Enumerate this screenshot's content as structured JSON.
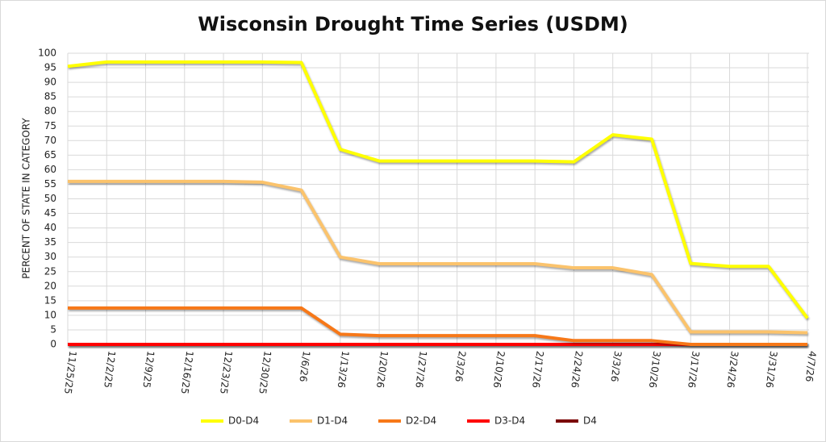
{
  "chart_data": {
    "type": "line",
    "title": "Wisconsin Drought Time Series (USDM)",
    "y_label": "PERCENT OF STATE IN CATEGORY",
    "categories": [
      "11/25/25",
      "12/2/25",
      "12/9/25",
      "12/16/25",
      "12/23/25",
      "12/30/25",
      "1/6/26",
      "1/13/26",
      "1/20/26",
      "1/27/26",
      "2/3/26",
      "2/10/26",
      "2/17/26",
      "2/24/26",
      "3/3/26",
      "3/10/26",
      "3/17/26",
      "3/24/26",
      "3/31/26",
      "4/7/26"
    ],
    "series": [
      {
        "name": "D0-D4",
        "color": "#ffff00",
        "values": [
          95.5,
          97,
          97,
          97,
          97,
          97,
          96.8,
          67,
          63,
          63,
          63,
          63,
          63,
          62.7,
          72,
          70.5,
          27.8,
          26.8,
          26.8,
          9
        ]
      },
      {
        "name": "D1-D4",
        "color": "#fbc36c",
        "values": [
          56,
          56,
          56,
          56,
          56,
          55.7,
          53,
          30,
          27.7,
          27.7,
          27.7,
          27.7,
          27.7,
          26.3,
          26.3,
          24,
          4.3,
          4.3,
          4.3,
          4
        ]
      },
      {
        "name": "D2-D4",
        "color": "#f77818",
        "values": [
          12.5,
          12.5,
          12.5,
          12.5,
          12.5,
          12.5,
          12.5,
          3.5,
          3,
          3,
          3,
          3,
          3,
          1.3,
          1.3,
          1.3,
          0,
          0,
          0,
          0
        ]
      },
      {
        "name": "D3-D4",
        "color": "#ff0000",
        "values": [
          0,
          0,
          0,
          0,
          0,
          0,
          0,
          0,
          0,
          0,
          0,
          0,
          0,
          0,
          0,
          0,
          0,
          0,
          0,
          0
        ]
      },
      {
        "name": "D4",
        "color": "#7a0000",
        "values": [
          0,
          0,
          0,
          0,
          0,
          0,
          0,
          0,
          0,
          0,
          0,
          0,
          0,
          0,
          0,
          0,
          0,
          0,
          0,
          0
        ]
      }
    ],
    "ylim": [
      0,
      100
    ],
    "yticks": [
      0,
      5,
      10,
      15,
      20,
      25,
      30,
      35,
      40,
      45,
      50,
      55,
      60,
      65,
      70,
      75,
      80,
      85,
      90,
      95,
      100
    ],
    "grid": true,
    "legend": "bottom"
  }
}
